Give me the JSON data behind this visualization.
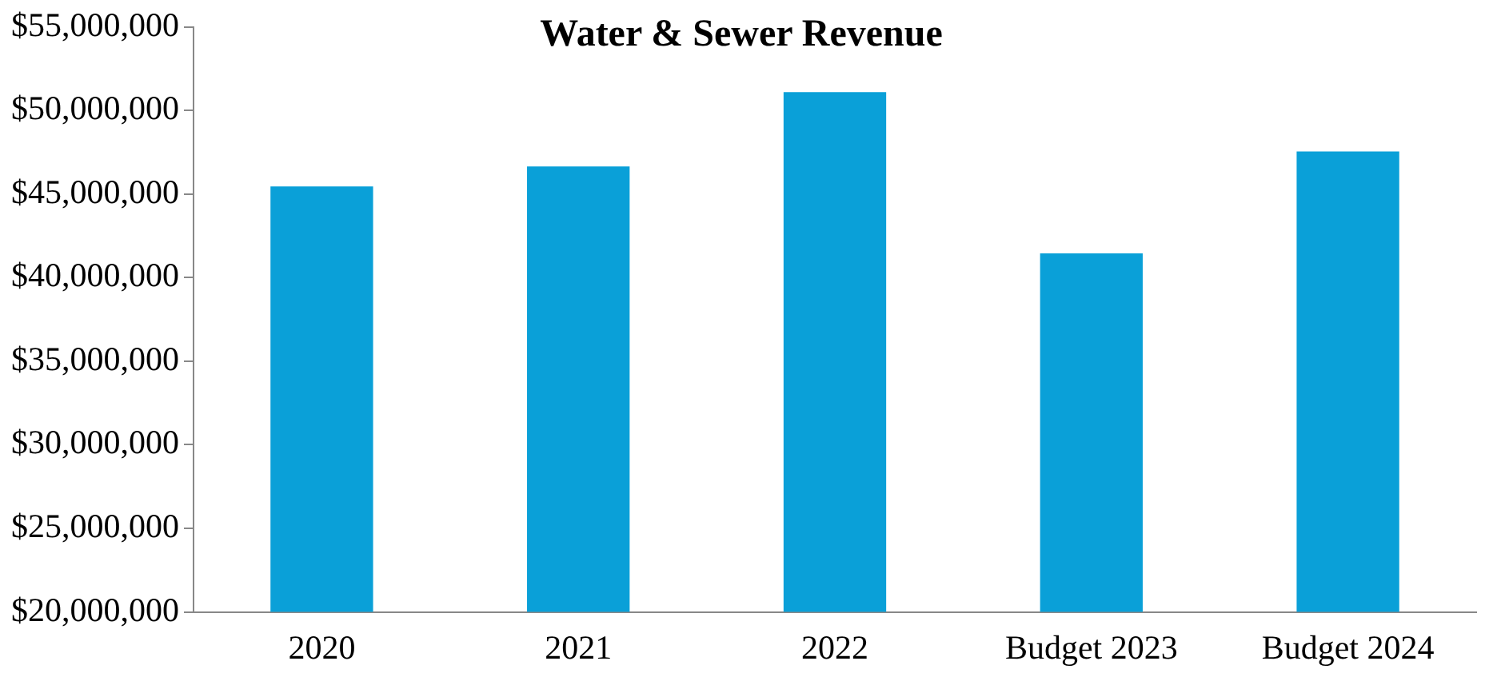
{
  "chart_data": {
    "type": "bar",
    "title": "Water & Sewer Revenue",
    "categories": [
      "2020",
      "2021",
      "2022",
      "Budget 2023",
      "Budget 2024"
    ],
    "values": [
      45450000,
      46650000,
      51100000,
      41450000,
      47550000
    ],
    "color": "#0aa0d8",
    "ylim": [
      20000000,
      55000000
    ],
    "yticks": [
      {
        "value": 20000000,
        "label": "$20,000,000"
      },
      {
        "value": 25000000,
        "label": "$25,000,000"
      },
      {
        "value": 30000000,
        "label": "$30,000,000"
      },
      {
        "value": 35000000,
        "label": "$35,000,000"
      },
      {
        "value": 40000000,
        "label": "$40,000,000"
      },
      {
        "value": 45000000,
        "label": "$45,000,000"
      },
      {
        "value": 50000000,
        "label": "$50,000,000"
      },
      {
        "value": 55000000,
        "label": "$55,000,000"
      }
    ],
    "grid": false,
    "legend": false
  }
}
